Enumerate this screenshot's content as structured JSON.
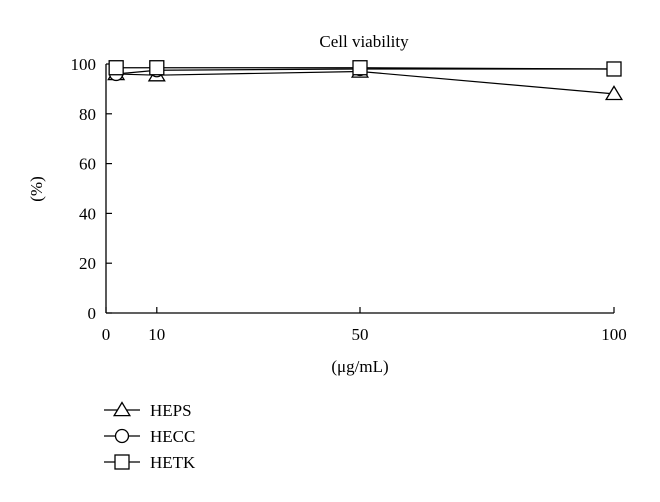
{
  "chart_data": {
    "type": "line",
    "title": "Cell viability",
    "xlabel": "(μg/mL)",
    "ylabel": "(%)",
    "x": [
      2,
      10,
      50,
      100
    ],
    "xticks": [
      0,
      10,
      50,
      100
    ],
    "yticks": [
      0,
      20,
      40,
      60,
      80,
      100
    ],
    "xlim": [
      0,
      100
    ],
    "ylim": [
      0,
      100
    ],
    "grid": false,
    "legend_position": "bottom-left",
    "series": [
      {
        "name": "HEPS",
        "marker": "triangle",
        "values": [
          96,
          95.5,
          97,
          88
        ]
      },
      {
        "name": "HECC",
        "marker": "circle",
        "values": [
          96,
          97.5,
          98,
          98
        ]
      },
      {
        "name": "HETK",
        "marker": "square",
        "values": [
          98.5,
          98.5,
          98.5,
          98
        ]
      }
    ]
  }
}
